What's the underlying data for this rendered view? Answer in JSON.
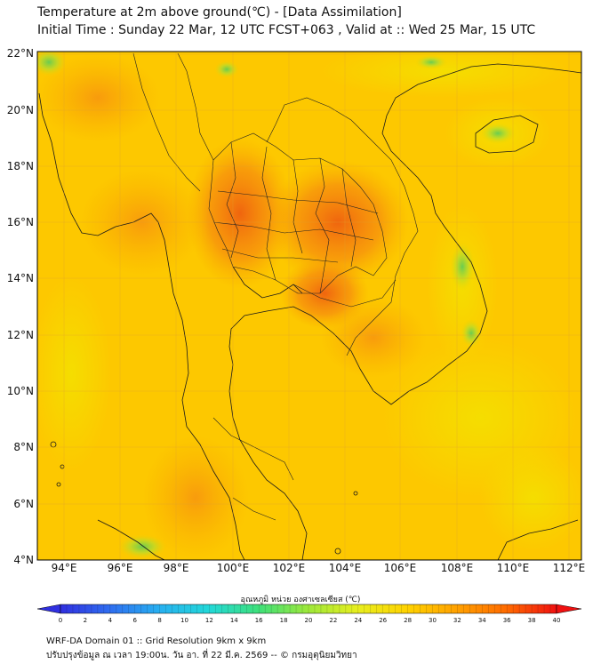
{
  "header": {
    "title": "Temperature at 2m above ground(℃) - [Data Assimilation]",
    "subtitle": "Initial Time : Sunday 22 Mar, 12 UTC FCST+063 , Valid at :: Wed 25 Mar, 15 UTC"
  },
  "map": {
    "lat_labels": [
      "22°N",
      "20°N",
      "18°N",
      "16°N",
      "14°N",
      "12°N",
      "10°N",
      "8°N",
      "6°N",
      "4°N"
    ],
    "lon_labels": [
      "94°E",
      "96°E",
      "98°E",
      "100°E",
      "102°E",
      "104°E",
      "106°E",
      "108°E",
      "110°E",
      "112°E"
    ],
    "extent": {
      "lon_min": 93,
      "lon_max": 112.5,
      "lat_min": 4,
      "lat_max": 22.2
    },
    "base_color": "#fdc800",
    "hot_color": "#f05a10",
    "cool_color": "#7fd24a"
  },
  "colorbar": {
    "label": "อุณหภูมิ หน่วย องศาเซลเซียส (℃)",
    "ticks": [
      "0",
      "2",
      "4",
      "6",
      "8",
      "10",
      "12",
      "14",
      "16",
      "18",
      "20",
      "22",
      "24",
      "26",
      "28",
      "30",
      "32",
      "34",
      "36",
      "38",
      "40"
    ],
    "min": 0,
    "max": 40,
    "colors": [
      "#3030e0",
      "#2f6ef0",
      "#27b0f0",
      "#22d8d8",
      "#3ee07a",
      "#9ee83a",
      "#e8ee1e",
      "#ffd200",
      "#ffa000",
      "#ff6a00",
      "#f01010"
    ]
  },
  "footer": {
    "line1": "WRF-DA Domain 01 :: Grid Resolution 9km x 9km",
    "line2": "ปรับปรุงข้อมูล ณ เวลา 19:00น. วัน อา. ที่ 22 มี.ค. 2569 -- © กรมอุตุนิยมวิทยา"
  }
}
